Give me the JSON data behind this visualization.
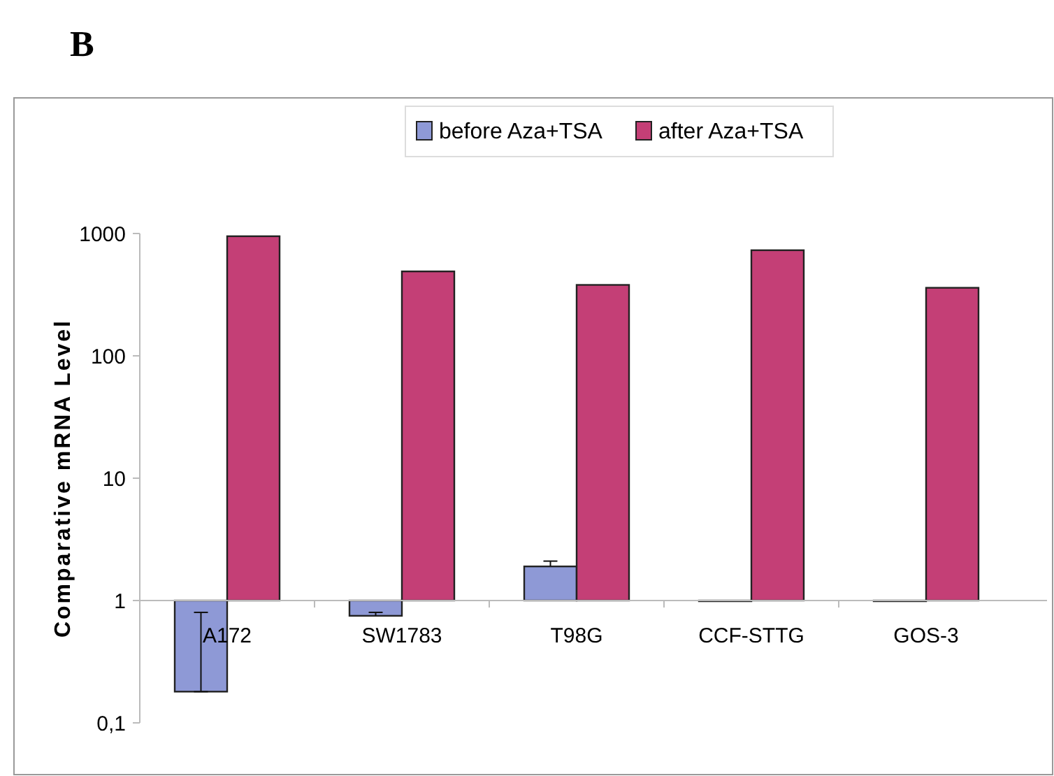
{
  "chart_data": {
    "type": "bar",
    "annotations": [
      "B"
    ],
    "ylabel": "Comparative mRNA Level",
    "categories": [
      "A172",
      "SW1783",
      "T98G",
      "CCF-STTG",
      "GOS-3"
    ],
    "series": [
      {
        "name": "before Aza+TSA",
        "color": "#8e99d6",
        "base": [
          1,
          1,
          1,
          1,
          1
        ],
        "values": [
          -0.82,
          -0.25,
          0.9,
          0,
          0
        ],
        "errors": [
          [
            0.18,
            0.8
          ],
          [
            0.75,
            0.8
          ],
          [
            1.9,
            2.1
          ],
          null,
          null
        ]
      },
      {
        "name": "after Aza+TSA",
        "color": "#c43f76",
        "base": [
          1,
          1,
          1,
          1,
          1
        ],
        "values": [
          949,
          489,
          379,
          729,
          359
        ]
      }
    ],
    "log": true,
    "ylim": [
      0.1,
      1000
    ],
    "yticks": [
      {
        "value": 0.1,
        "label": "0,1"
      },
      1,
      10,
      100,
      1000
    ],
    "legend": "top",
    "grid": false
  }
}
